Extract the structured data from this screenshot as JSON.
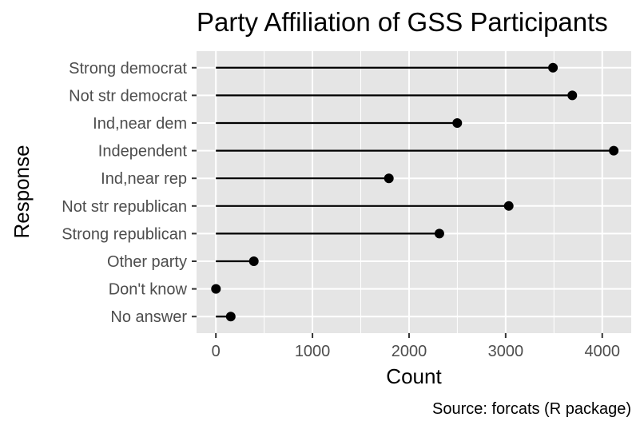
{
  "chart_data": {
    "type": "lollipop",
    "title": "Party Affiliation of GSS Participants",
    "xlabel": "Count",
    "ylabel": "Response",
    "caption": "Source: forcats (R package)",
    "xlim": [
      -200,
      4300
    ],
    "x_ticks": [
      0,
      1000,
      2000,
      3000,
      4000
    ],
    "grid": true,
    "legend": "none",
    "categories": [
      "Strong democrat",
      "Not str democrat",
      "Ind,near dem",
      "Independent",
      "Ind,near rep",
      "Not str republican",
      "Strong republican",
      "Other party",
      "Don't know",
      "No answer"
    ],
    "values": [
      3490,
      3690,
      2499,
      4119,
      1791,
      3032,
      2314,
      393,
      1,
      154
    ],
    "colors": {
      "panel_background": "#e5e5e5",
      "grid": "#ffffff",
      "marks": "#000000",
      "tick_text": "#4d4d4d"
    }
  }
}
